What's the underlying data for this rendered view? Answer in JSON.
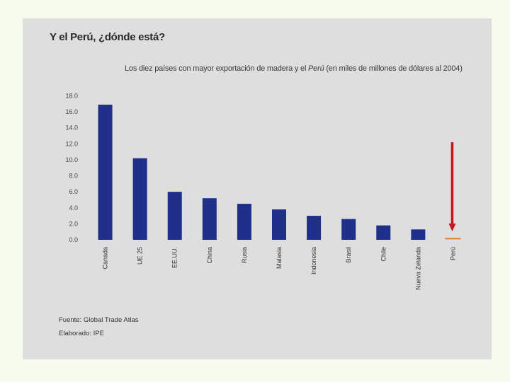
{
  "slide": {
    "title": "Y el Perú, ¿dónde está?"
  },
  "footnotes": {
    "source": "Fuente: Global Trade Atlas",
    "author": "Elaborado: IPE"
  },
  "colors": {
    "bar": "#1f2f8a",
    "peru_bar": "#e07b26",
    "arrow": "#c4161c"
  },
  "chart_data": {
    "type": "bar",
    "title_prefix": "Los diez países con mayor exportación de madera y el ",
    "title_italic": "Perú",
    "title_suffix": " (en miles de millones de dólares al 2004)",
    "categories": [
      "Canada",
      "UE 25",
      "EE.UU.",
      "China",
      "Rusia",
      "Malasia",
      "Indonesia",
      "Brasil",
      "Chile",
      "Nueva Zelanda",
      "Perú"
    ],
    "values": [
      16.9,
      10.2,
      6.0,
      5.2,
      4.5,
      3.8,
      3.0,
      2.6,
      1.8,
      1.3,
      0.15
    ],
    "ylim": [
      0,
      18
    ],
    "yticks": [
      "0.0",
      "2.0",
      "4.0",
      "6.0",
      "8.0",
      "10.0",
      "12.0",
      "14.0",
      "16.0",
      "18.0"
    ],
    "highlight": "Perú",
    "xlabel": "",
    "ylabel": ""
  }
}
